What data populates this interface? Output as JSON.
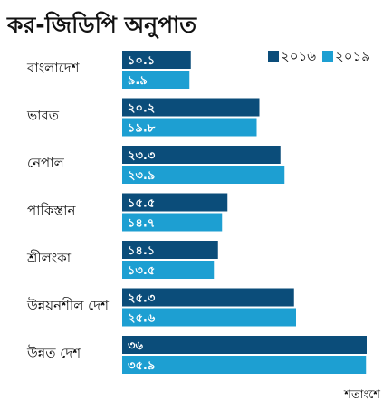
{
  "chart_data": {
    "type": "bar",
    "orientation": "horizontal",
    "title": "কর-জিডিপি অনুপাত",
    "unit_note": "শতাংশে",
    "categories": [
      "বাংলাদেশ",
      "ভারত",
      "নেপাল",
      "পাকিস্তান",
      "শ্রীলংকা",
      "উন্নয়নশীল দেশ",
      "উন্নত দেশ"
    ],
    "series": [
      {
        "name": "২০১৬",
        "color": "#0b4d7a",
        "values": [
          10.1,
          20.2,
          23.3,
          15.5,
          14.1,
          25.3,
          36
        ],
        "labels": [
          "১০.১",
          "২০.২",
          "২৩.৩",
          "১৫.৫",
          "১৪.১",
          "২৫.৩",
          "৩৬"
        ]
      },
      {
        "name": "২০১৯",
        "color": "#1d9fd2",
        "values": [
          9.9,
          19.8,
          23.9,
          14.7,
          13.5,
          25.6,
          35.9
        ],
        "labels": [
          "৯.৯",
          "১৯.৮",
          "২৩.৯",
          "১৪.৭",
          "১৩.৫",
          "২৫.৬",
          "৩৫.৯"
        ]
      }
    ],
    "xlim": [
      0,
      36
    ],
    "grid": false,
    "legend_position": "top-right"
  }
}
